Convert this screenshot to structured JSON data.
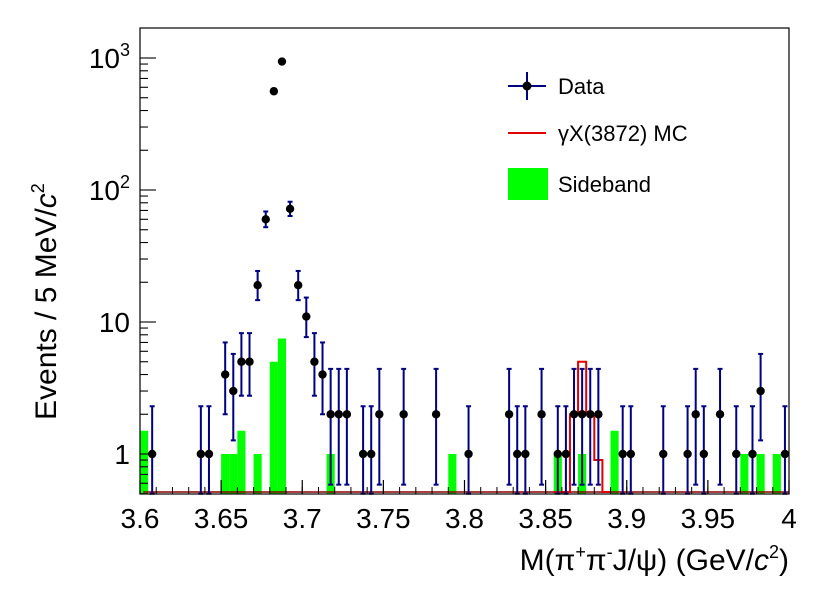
{
  "chart_data": {
    "type": "scatter",
    "xlabel_parts": {
      "m": "M(",
      "pi": "π",
      "sup_plus": "+",
      "sup_minus": "-",
      "jpsi": "J/ψ) (GeV/",
      "c": "c",
      "exp": "2",
      "close": ")"
    },
    "ylabel_parts": {
      "main": "Events / 5 MeV/",
      "c": "c",
      "exp": "2"
    },
    "xlim": [
      3.6,
      4.0
    ],
    "ylim_log": [
      0.5,
      1800
    ],
    "x_ticks": [
      {
        "value": 3.6,
        "label": "3.6"
      },
      {
        "value": 3.65,
        "label": "3.65"
      },
      {
        "value": 3.7,
        "label": "3.7"
      },
      {
        "value": 3.75,
        "label": "3.75"
      },
      {
        "value": 3.8,
        "label": "3.8"
      },
      {
        "value": 3.85,
        "label": "3.85"
      },
      {
        "value": 3.9,
        "label": "3.9"
      },
      {
        "value": 3.95,
        "label": "3.95"
      },
      {
        "value": 4.0,
        "label": "4"
      }
    ],
    "y_ticks": [
      {
        "value": 1,
        "label": "1"
      },
      {
        "value": 10,
        "label": "10"
      },
      {
        "value": 100,
        "base": "10",
        "exp": "2"
      },
      {
        "value": 1000,
        "base": "10",
        "exp": "3"
      }
    ],
    "legend": [
      {
        "name": "Data",
        "kind": "point"
      },
      {
        "name": "γX(3872) MC",
        "kind": "line"
      },
      {
        "name": "Sideband",
        "kind": "fill"
      }
    ],
    "colors": {
      "data_error": "#000080",
      "data_marker": "#000000",
      "mc": "#e00000",
      "sideband": "#00ff00"
    },
    "series": [
      {
        "name": "Data",
        "points": [
          [
            3.6075,
            1
          ],
          [
            3.6375,
            1
          ],
          [
            3.6425,
            1
          ],
          [
            3.6525,
            4
          ],
          [
            3.6575,
            3
          ],
          [
            3.6625,
            5
          ],
          [
            3.6675,
            5
          ],
          [
            3.6725,
            19
          ],
          [
            3.6775,
            60
          ],
          [
            3.6825,
            560
          ],
          [
            3.6875,
            940
          ],
          [
            3.6925,
            72
          ],
          [
            3.6975,
            19
          ],
          [
            3.7025,
            11
          ],
          [
            3.7075,
            5
          ],
          [
            3.7125,
            4
          ],
          [
            3.7175,
            2
          ],
          [
            3.7225,
            2
          ],
          [
            3.7275,
            2
          ],
          [
            3.7375,
            1
          ],
          [
            3.7425,
            1
          ],
          [
            3.7475,
            2
          ],
          [
            3.7625,
            2
          ],
          [
            3.7825,
            2
          ],
          [
            3.8025,
            1
          ],
          [
            3.8275,
            2
          ],
          [
            3.8325,
            1
          ],
          [
            3.8375,
            1
          ],
          [
            3.8475,
            2
          ],
          [
            3.8575,
            1
          ],
          [
            3.8625,
            1
          ],
          [
            3.8675,
            2
          ],
          [
            3.8725,
            2
          ],
          [
            3.8775,
            2
          ],
          [
            3.8825,
            2
          ],
          [
            3.8975,
            1
          ],
          [
            3.9025,
            1
          ],
          [
            3.9225,
            1
          ],
          [
            3.9375,
            1
          ],
          [
            3.9425,
            2
          ],
          [
            3.9475,
            1
          ],
          [
            3.9575,
            2
          ],
          [
            3.9675,
            1
          ],
          [
            3.9825,
            3
          ],
          [
            3.9775,
            1
          ],
          [
            3.9975,
            1
          ]
        ]
      },
      {
        "name": "γX(3872) MC",
        "bins": [
          [
            3.855,
            0.5
          ],
          [
            3.86,
            0.5
          ],
          [
            3.865,
            2.0
          ],
          [
            3.87,
            5.0
          ],
          [
            3.875,
            2.0
          ],
          [
            3.88,
            0.9
          ],
          [
            3.885,
            0.5
          ]
        ]
      },
      {
        "name": "Sideband",
        "bars": [
          [
            3.6,
            1.5
          ],
          [
            3.65,
            1.0
          ],
          [
            3.655,
            1.0
          ],
          [
            3.66,
            1.5
          ],
          [
            3.67,
            1.0
          ],
          [
            3.68,
            5.0
          ],
          [
            3.685,
            7.5
          ],
          [
            3.715,
            1.0
          ],
          [
            3.79,
            1.0
          ],
          [
            3.855,
            1.0
          ],
          [
            3.87,
            1.0
          ],
          [
            3.89,
            1.5
          ],
          [
            3.97,
            1.0
          ],
          [
            3.98,
            1.0
          ],
          [
            3.99,
            1.0
          ]
        ]
      }
    ]
  }
}
